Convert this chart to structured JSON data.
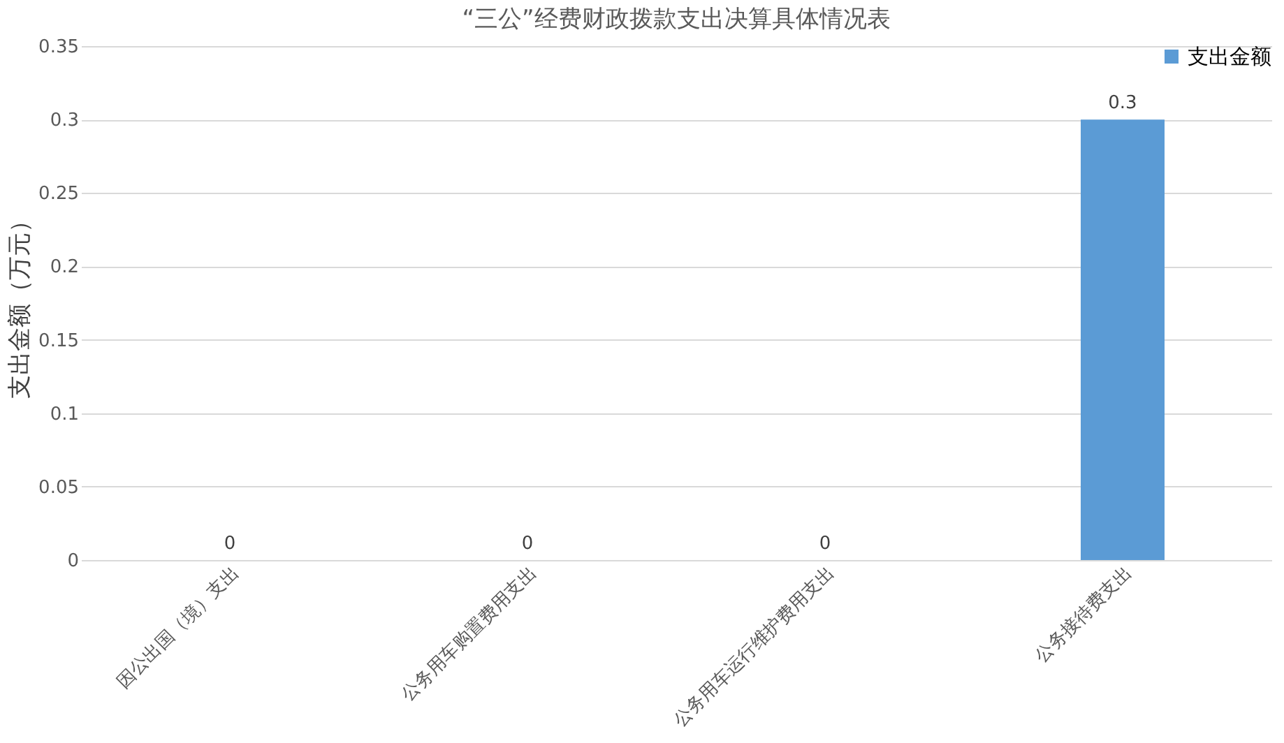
{
  "chart_data": {
    "type": "bar",
    "title": "“三公”经费财政拨款支出决算具体情况表",
    "ylabel": "支出金额（万元）",
    "categories": [
      "因公出国（境）支出",
      "公务用车购置费用支出",
      "公务用车运行维护费用支出",
      "公务接待费支出"
    ],
    "series": [
      {
        "name": "支出金额",
        "color": "#5b9bd5",
        "values": [
          0,
          0,
          0,
          0.3
        ]
      }
    ],
    "ylim": [
      0,
      0.35
    ],
    "yticks": [
      0,
      0.05,
      0.1,
      0.15,
      0.2,
      0.25,
      0.3,
      0.35
    ],
    "grid": "y",
    "legend": "top right",
    "data_labels": true
  }
}
